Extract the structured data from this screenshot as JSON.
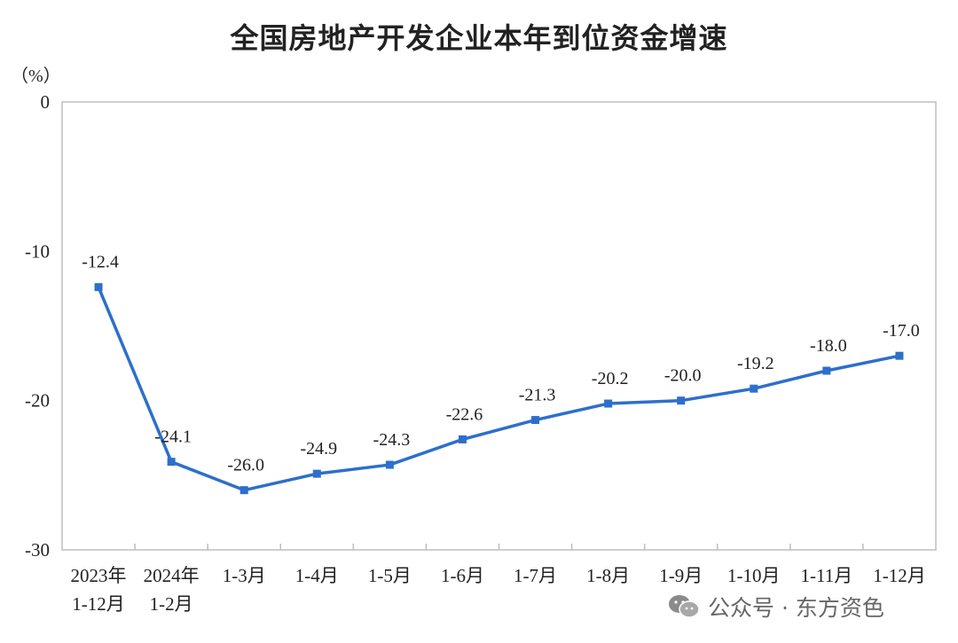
{
  "chart_data": {
    "type": "line",
    "title": "全国房地产开发企业本年到位资金增速",
    "unit_label": "（%）",
    "categories": [
      [
        "2023年",
        "1-12月"
      ],
      [
        "2024年",
        "1-2月"
      ],
      [
        "1-3月"
      ],
      [
        "1-4月"
      ],
      [
        "1-5月"
      ],
      [
        "1-6月"
      ],
      [
        "1-7月"
      ],
      [
        "1-8月"
      ],
      [
        "1-9月"
      ],
      [
        "1-10月"
      ],
      [
        "1-11月"
      ],
      [
        "1-12月"
      ]
    ],
    "values": [
      -12.4,
      -24.1,
      -26.0,
      -24.9,
      -24.3,
      -22.6,
      -21.3,
      -20.2,
      -20.0,
      -19.2,
      -18.0,
      -17.0
    ],
    "data_labels": [
      "-12.4",
      "-24.1",
      "-26.0",
      "-24.9",
      "-24.3",
      "-22.6",
      "-21.3",
      "-20.2",
      "-20.0",
      "-19.2",
      "-18.0",
      "-17.0"
    ],
    "ylim": [
      -30,
      0
    ],
    "yticks": [
      0,
      -10,
      -20,
      -30
    ],
    "ytick_labels": [
      "0",
      "-10",
      "-20",
      "-30"
    ],
    "grid": false,
    "legend": "none",
    "series_color": "#2D6FCC"
  },
  "watermark": {
    "icon": "wechat-icon",
    "text": "公众号 · 东方资色"
  }
}
